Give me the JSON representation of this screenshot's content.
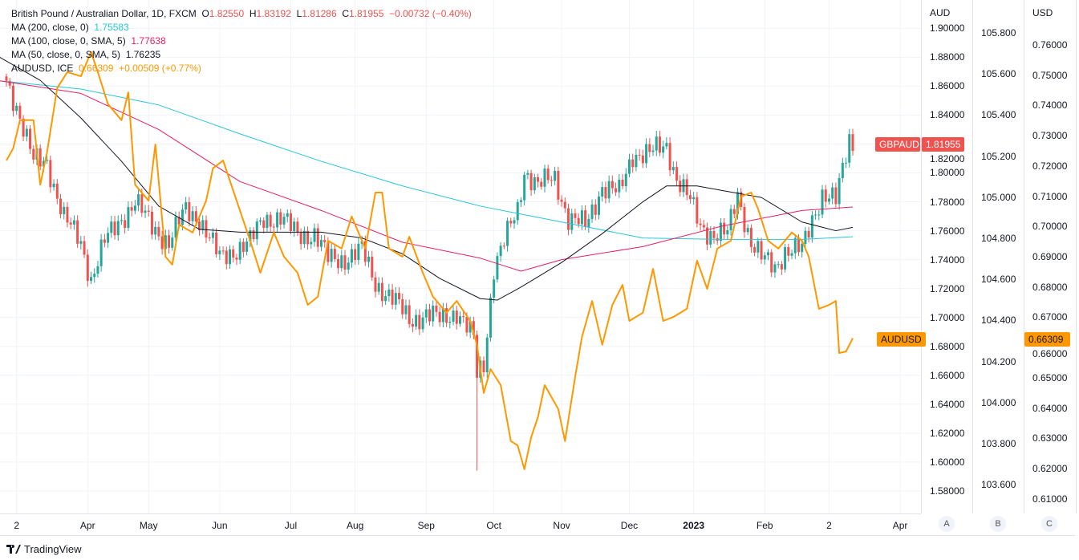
{
  "legend": {
    "main": "British Pound / Australian Dollar, 1D, FXCM",
    "o_label": "O",
    "o": "1.82550",
    "h_label": "H",
    "h": "1.83192",
    "l_label": "L",
    "l": "1.81286",
    "c_label": "C",
    "c": "1.81955",
    "change": "−0.00732 (−0.40%)",
    "ma200": "MA (200, close, 0)",
    "ma200_val": "1.75583",
    "ma100": "MA (100, close, 0, SMA, 5)",
    "ma100_val": "1.77638",
    "ma50": "MA (50, close, 0, SMA, 5)",
    "ma50_val": "1.76235",
    "audusd": "AUDUSD, ICE",
    "audusd_val": "0.66309",
    "audusd_change": "+0.00509 (+0.77%)"
  },
  "colors": {
    "up": "#26a69a",
    "down": "#ef5350",
    "ma200": "#26c6da",
    "ma100": "#e91e63",
    "ma50": "#131722",
    "audusd": "#ff9800",
    "grid": "#f0f3fa"
  },
  "badges": {
    "gbpaud_name": "GBPAUD",
    "gbpaud_val": "1.81955",
    "audusd_name": "AUDUSD",
    "audusd_val": "0.66309"
  },
  "axis_buttons": [
    "A",
    "B",
    "C"
  ],
  "brand": "TradingView",
  "chart_data": {
    "type": "candlestick",
    "title": "British Pound / Australian Dollar, 1D, FXCM",
    "days": 251,
    "x_ticks": [
      {
        "label": "2",
        "day": 3
      },
      {
        "label": "Apr",
        "day": 24
      },
      {
        "label": "May",
        "day": 42
      },
      {
        "label": "Jun",
        "day": 63
      },
      {
        "label": "Jul",
        "day": 84
      },
      {
        "label": "Aug",
        "day": 103
      },
      {
        "label": "Sep",
        "day": 124
      },
      {
        "label": "Oct",
        "day": 144
      },
      {
        "label": "Nov",
        "day": 164
      },
      {
        "label": "Dec",
        "day": 184
      },
      {
        "label": "2023",
        "day": 203,
        "bold": true
      },
      {
        "label": "Feb",
        "day": 224
      },
      {
        "label": "2",
        "day": 243
      },
      {
        "label": "Apr",
        "day": 264
      }
    ],
    "axes": {
      "aud": {
        "title": "AUD",
        "range": [
          1.5644,
          1.9196
        ],
        "ticks": [
          "1.90000",
          "1.88000",
          "1.86000",
          "1.84000",
          "1.82000",
          "1.80000",
          "1.78000",
          "1.76000",
          "1.74000",
          "1.72000",
          "1.70000",
          "1.68000",
          "1.66000",
          "1.64000",
          "1.62000",
          "1.60000",
          "1.58000"
        ]
      },
      "b": {
        "range": [
          103.46,
          105.96
        ],
        "ticks": [
          "105.800",
          "105.600",
          "105.400",
          "105.200",
          "105.000",
          "104.800",
          "104.600",
          "104.400",
          "104.200",
          "104.000",
          "103.800",
          "103.600"
        ]
      },
      "usd": {
        "title": "USD",
        "range": [
          0.6052,
          0.7748
        ],
        "ticks": [
          "0.76000",
          "0.75000",
          "0.74000",
          "0.73000",
          "0.72000",
          "0.71000",
          "0.70000",
          "0.69000",
          "0.68000",
          "0.67000",
          "0.66000",
          "0.65000",
          "0.64000",
          "0.63000",
          "0.62000",
          "0.61000"
        ]
      }
    },
    "gbpaud_close": [
      [
        0,
        1.8637
      ],
      [
        3,
        1.8469
      ],
      [
        8,
        1.8078
      ],
      [
        12,
        1.8078
      ],
      [
        17,
        1.7687
      ],
      [
        22,
        1.7519
      ],
      [
        25,
        1.7267
      ],
      [
        29,
        1.7519
      ],
      [
        34,
        1.7687
      ],
      [
        38,
        1.7799
      ],
      [
        43,
        1.7631
      ],
      [
        48,
        1.7519
      ],
      [
        53,
        1.7743
      ],
      [
        57,
        1.7687
      ],
      [
        63,
        1.7407
      ],
      [
        67,
        1.7463
      ],
      [
        72,
        1.7519
      ],
      [
        76,
        1.7687
      ],
      [
        81,
        1.7687
      ],
      [
        86,
        1.7575
      ],
      [
        91,
        1.7575
      ],
      [
        95,
        1.7407
      ],
      [
        100,
        1.7407
      ],
      [
        105,
        1.7463
      ],
      [
        109,
        1.724
      ],
      [
        114,
        1.7128
      ],
      [
        119,
        1.6988
      ],
      [
        124,
        1.7016
      ],
      [
        128,
        1.6988
      ],
      [
        133,
        1.7044
      ],
      [
        138,
        1.6848
      ],
      [
        139,
        1.66
      ],
      [
        141,
        1.6681
      ],
      [
        144,
        1.7351
      ],
      [
        147,
        1.7519
      ],
      [
        151,
        1.7743
      ],
      [
        153,
        1.8022
      ],
      [
        157,
        1.791
      ],
      [
        162,
        1.7966
      ],
      [
        166,
        1.7687
      ],
      [
        171,
        1.7631
      ],
      [
        176,
        1.791
      ],
      [
        181,
        1.7855
      ],
      [
        185,
        1.8134
      ],
      [
        190,
        1.8134
      ],
      [
        195,
        1.819
      ],
      [
        198,
        1.7966
      ],
      [
        202,
        1.7799
      ],
      [
        205,
        1.7631
      ],
      [
        209,
        1.7575
      ],
      [
        213,
        1.7575
      ],
      [
        216,
        1.7855
      ],
      [
        220,
        1.7519
      ],
      [
        223,
        1.7407
      ],
      [
        227,
        1.7351
      ],
      [
        230,
        1.7463
      ],
      [
        235,
        1.7463
      ],
      [
        238,
        1.7687
      ],
      [
        241,
        1.7855
      ],
      [
        245,
        1.7799
      ],
      [
        247,
        1.8022
      ],
      [
        249,
        1.8246
      ],
      [
        250,
        1.81955
      ]
    ],
    "spike_low": {
      "day": 139,
      "value": 1.594
    },
    "ma200": [
      [
        -2,
        1.8637
      ],
      [
        22,
        1.858
      ],
      [
        45,
        1.847
      ],
      [
        69,
        1.827
      ],
      [
        93,
        1.808
      ],
      [
        117,
        1.791
      ],
      [
        140,
        1.777
      ],
      [
        164,
        1.766
      ],
      [
        188,
        1.755
      ],
      [
        211,
        1.754
      ],
      [
        235,
        1.754
      ],
      [
        250,
        1.75583
      ]
    ],
    "ma100": [
      [
        -2,
        1.8637
      ],
      [
        22,
        1.855
      ],
      [
        45,
        1.83
      ],
      [
        69,
        1.794
      ],
      [
        93,
        1.774
      ],
      [
        117,
        1.752
      ],
      [
        140,
        1.741
      ],
      [
        152,
        1.732
      ],
      [
        164,
        1.74
      ],
      [
        188,
        1.749
      ],
      [
        211,
        1.763
      ],
      [
        235,
        1.774
      ],
      [
        250,
        1.77638
      ]
    ],
    "ma50": [
      [
        -2,
        1.88
      ],
      [
        10,
        1.864
      ],
      [
        22,
        1.838
      ],
      [
        34,
        1.808
      ],
      [
        45,
        1.777
      ],
      [
        57,
        1.761
      ],
      [
        69,
        1.759
      ],
      [
        93,
        1.759
      ],
      [
        105,
        1.755
      ],
      [
        117,
        1.744
      ],
      [
        128,
        1.727
      ],
      [
        140,
        1.713
      ],
      [
        145,
        1.712
      ],
      [
        152,
        1.721
      ],
      [
        164,
        1.738
      ],
      [
        176,
        1.758
      ],
      [
        188,
        1.78
      ],
      [
        195,
        1.791
      ],
      [
        204,
        1.791
      ],
      [
        211,
        1.788
      ],
      [
        223,
        1.783
      ],
      [
        235,
        1.766
      ],
      [
        245,
        1.76
      ],
      [
        250,
        1.76235
      ]
    ],
    "audusd": [
      [
        0,
        0.7218
      ],
      [
        2,
        0.7258
      ],
      [
        4,
        0.7351
      ],
      [
        8,
        0.7351
      ],
      [
        10,
        0.7138
      ],
      [
        12,
        0.7245
      ],
      [
        15,
        0.7457
      ],
      [
        18,
        0.751
      ],
      [
        22,
        0.7496
      ],
      [
        25,
        0.7576
      ],
      [
        27,
        0.751
      ],
      [
        30,
        0.7404
      ],
      [
        34,
        0.7351
      ],
      [
        36,
        0.7443
      ],
      [
        38,
        0.7138
      ],
      [
        42,
        0.7085
      ],
      [
        44,
        0.7271
      ],
      [
        47,
        0.69
      ],
      [
        49,
        0.6874
      ],
      [
        51,
        0.7006
      ],
      [
        55,
        0.698
      ],
      [
        59,
        0.7085
      ],
      [
        61,
        0.7192
      ],
      [
        64,
        0.7218
      ],
      [
        68,
        0.7085
      ],
      [
        72,
        0.6953
      ],
      [
        75,
        0.6847
      ],
      [
        79,
        0.698
      ],
      [
        82,
        0.69
      ],
      [
        86,
        0.6847
      ],
      [
        89,
        0.6741
      ],
      [
        92,
        0.6768
      ],
      [
        95,
        0.6953
      ],
      [
        99,
        0.6927
      ],
      [
        102,
        0.7033
      ],
      [
        106,
        0.6927
      ],
      [
        109,
        0.7112
      ],
      [
        111,
        0.7112
      ],
      [
        113,
        0.6927
      ],
      [
        117,
        0.69
      ],
      [
        119,
        0.6966
      ],
      [
        123,
        0.6847
      ],
      [
        126,
        0.6768
      ],
      [
        130,
        0.6715
      ],
      [
        133,
        0.6754
      ],
      [
        137,
        0.6688
      ],
      [
        139,
        0.6609
      ],
      [
        141,
        0.645
      ],
      [
        143,
        0.6529
      ],
      [
        146,
        0.6476
      ],
      [
        149,
        0.6291
      ],
      [
        151,
        0.6277
      ],
      [
        153,
        0.6198
      ],
      [
        155,
        0.6304
      ],
      [
        157,
        0.637
      ],
      [
        159,
        0.6476
      ],
      [
        163,
        0.6397
      ],
      [
        165,
        0.6291
      ],
      [
        168,
        0.6503
      ],
      [
        170,
        0.6635
      ],
      [
        173,
        0.6754
      ],
      [
        176,
        0.6609
      ],
      [
        179,
        0.6741
      ],
      [
        182,
        0.6807
      ],
      [
        184,
        0.6688
      ],
      [
        188,
        0.6715
      ],
      [
        191,
        0.686
      ],
      [
        194,
        0.6688
      ],
      [
        197,
        0.6701
      ],
      [
        201,
        0.6728
      ],
      [
        204,
        0.6887
      ],
      [
        207,
        0.6794
      ],
      [
        210,
        0.6927
      ],
      [
        214,
        0.6953
      ],
      [
        217,
        0.7099
      ],
      [
        220,
        0.7112
      ],
      [
        222,
        0.7059
      ],
      [
        225,
        0.6953
      ],
      [
        228,
        0.6927
      ],
      [
        232,
        0.698
      ],
      [
        235,
        0.6953
      ],
      [
        237,
        0.69
      ],
      [
        240,
        0.6728
      ],
      [
        243,
        0.6741
      ],
      [
        245,
        0.6754
      ],
      [
        246,
        0.6582
      ],
      [
        248,
        0.6587
      ],
      [
        250,
        0.66309
      ]
    ]
  }
}
